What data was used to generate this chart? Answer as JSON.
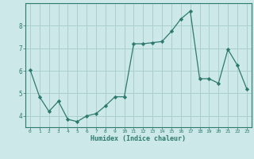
{
  "x": [
    0,
    1,
    2,
    3,
    4,
    5,
    6,
    7,
    8,
    9,
    10,
    11,
    12,
    13,
    14,
    15,
    16,
    17,
    18,
    19,
    20,
    21,
    22,
    23
  ],
  "y": [
    6.05,
    4.85,
    4.2,
    4.65,
    3.85,
    3.75,
    4.0,
    4.1,
    4.45,
    4.85,
    4.85,
    7.2,
    7.2,
    7.25,
    7.3,
    7.75,
    8.3,
    8.65,
    5.65,
    5.65,
    5.45,
    6.95,
    6.25,
    5.2
  ],
  "line_color": "#2d7a6e",
  "marker": "D",
  "marker_size": 2.2,
  "xlabel": "Humidex (Indice chaleur)",
  "xlim": [
    -0.5,
    23.5
  ],
  "ylim": [
    3.5,
    9.0
  ],
  "bg_color": "#cce8e8",
  "grid_color": "#aacfcf",
  "tick_color": "#2d7a6e",
  "label_color": "#2d7a6e",
  "yticks": [
    4,
    5,
    6,
    7,
    8
  ],
  "xticks": [
    0,
    1,
    2,
    3,
    4,
    5,
    6,
    7,
    8,
    9,
    10,
    11,
    12,
    13,
    14,
    15,
    16,
    17,
    18,
    19,
    20,
    21,
    22,
    23
  ]
}
